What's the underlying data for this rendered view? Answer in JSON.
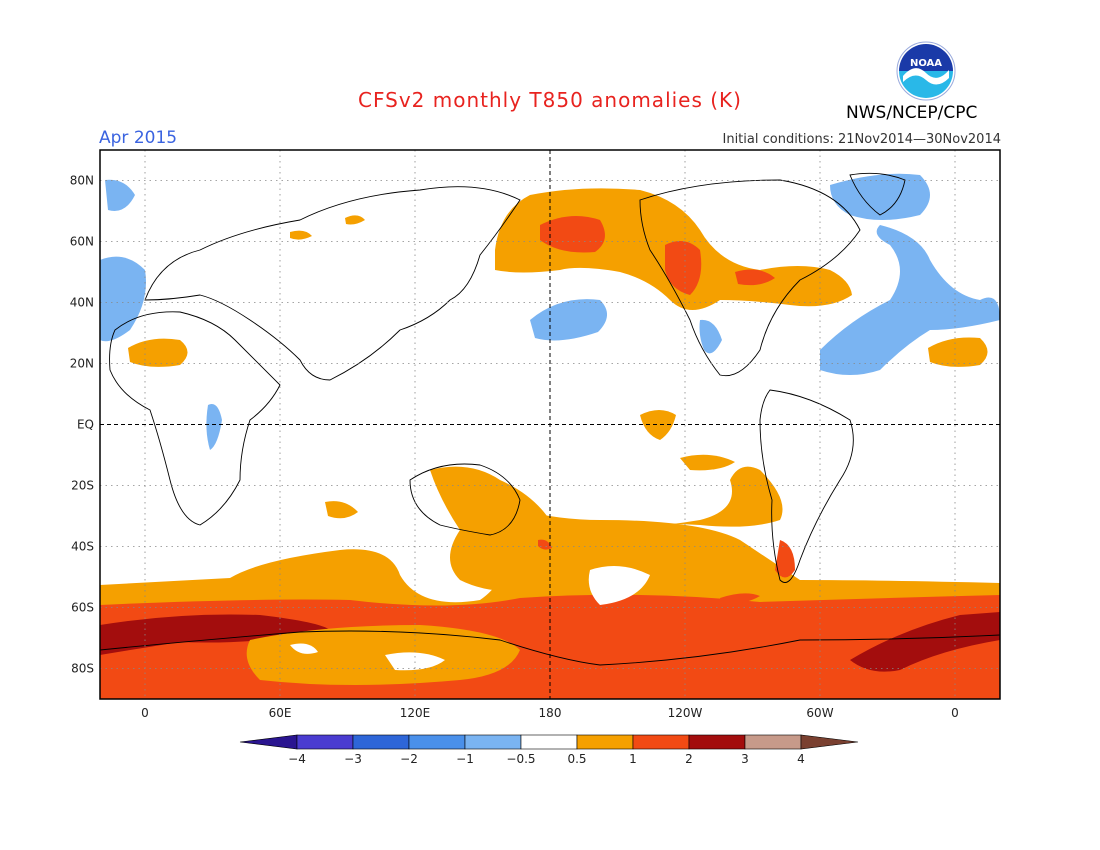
{
  "title": "CFSv2 monthly T850 anomalies (K)",
  "valid_month": "Apr 2015",
  "agency": "NWS/NCEP/CPC",
  "initial_conditions": "Initial conditions: 21Nov2014—30Nov2014",
  "logo_icon": "noaa-logo-icon",
  "map": {
    "lat_labels": [
      "80N",
      "60N",
      "40N",
      "20N",
      "EQ",
      "20S",
      "40S",
      "60S",
      "80S"
    ],
    "lon_labels": [
      "0",
      "60E",
      "120E",
      "180",
      "120W",
      "60W",
      "0"
    ],
    "lat_values": [
      80,
      60,
      40,
      20,
      0,
      -20,
      -40,
      -60,
      -80
    ],
    "lon_values": [
      0,
      60,
      120,
      180,
      240,
      300,
      360
    ],
    "lon_range": [
      -20,
      380
    ],
    "lat_range": [
      -90,
      90
    ]
  },
  "legend": {
    "labels": [
      "−4",
      "−3",
      "−2",
      "−1",
      "−0.5",
      "0.5",
      "1",
      "2",
      "3",
      "4"
    ],
    "colors": [
      "#2a1590",
      "#4a3cd0",
      "#2e66d8",
      "#4a90ea",
      "#7ab4f2",
      "#ffffff",
      "#f5a000",
      "#f24a14",
      "#a30d0d",
      "#c79a8a",
      "#7a4030"
    ]
  }
}
